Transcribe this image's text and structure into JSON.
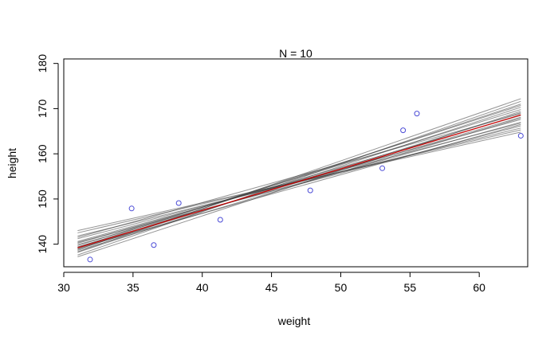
{
  "chart_data": {
    "type": "scatter",
    "title": "N = 10",
    "xlabel": "weight",
    "ylabel": "height",
    "xlim": [
      30,
      63.5
    ],
    "ylim": [
      135,
      181
    ],
    "x_ticks": [
      30,
      35,
      40,
      45,
      50,
      55,
      60
    ],
    "y_ticks": [
      140,
      150,
      160,
      170,
      180
    ],
    "grid": false,
    "points": [
      {
        "x": 31.9,
        "y": 136.6
      },
      {
        "x": 34.9,
        "y": 147.9
      },
      {
        "x": 36.5,
        "y": 139.8
      },
      {
        "x": 38.3,
        "y": 149.1
      },
      {
        "x": 41.3,
        "y": 145.4
      },
      {
        "x": 47.8,
        "y": 151.9
      },
      {
        "x": 53.0,
        "y": 156.8
      },
      {
        "x": 54.5,
        "y": 165.2
      },
      {
        "x": 55.5,
        "y": 168.9
      },
      {
        "x": 63.0,
        "y": 164.0
      }
    ],
    "posterior_lines": [
      {
        "y_start": 138.3,
        "y_end": 172.2
      },
      {
        "y_start": 137.6,
        "y_end": 171.6
      },
      {
        "y_start": 138.8,
        "y_end": 171.0
      },
      {
        "y_start": 139.3,
        "y_end": 170.7
      },
      {
        "y_start": 138.2,
        "y_end": 170.3
      },
      {
        "y_start": 139.7,
        "y_end": 169.8
      },
      {
        "y_start": 138.9,
        "y_end": 169.1
      },
      {
        "y_start": 140.2,
        "y_end": 168.5
      },
      {
        "y_start": 139.4,
        "y_end": 168.1
      },
      {
        "y_start": 140.6,
        "y_end": 167.6
      },
      {
        "y_start": 139.9,
        "y_end": 167.0
      },
      {
        "y_start": 141.2,
        "y_end": 166.8
      },
      {
        "y_start": 140.4,
        "y_end": 166.2
      },
      {
        "y_start": 141.8,
        "y_end": 165.7
      },
      {
        "y_start": 142.5,
        "y_end": 165.3
      },
      {
        "y_start": 143.0,
        "y_end": 164.8
      },
      {
        "y_start": 138.6,
        "y_end": 167.9
      },
      {
        "y_start": 139.1,
        "y_end": 166.5
      },
      {
        "y_start": 137.2,
        "y_end": 169.4
      },
      {
        "y_start": 141.5,
        "y_end": 168.9
      }
    ],
    "posterior_x_range": [
      31,
      63
    ],
    "mean_line": {
      "x_start": 31,
      "y_start": 139.2,
      "x_end": 63,
      "y_end": 168.6
    },
    "colors": {
      "points": "#4b4bd6",
      "posterior_lines": "#3c3c3c",
      "mean_line": "#cc0000",
      "frame": "#000000"
    }
  }
}
